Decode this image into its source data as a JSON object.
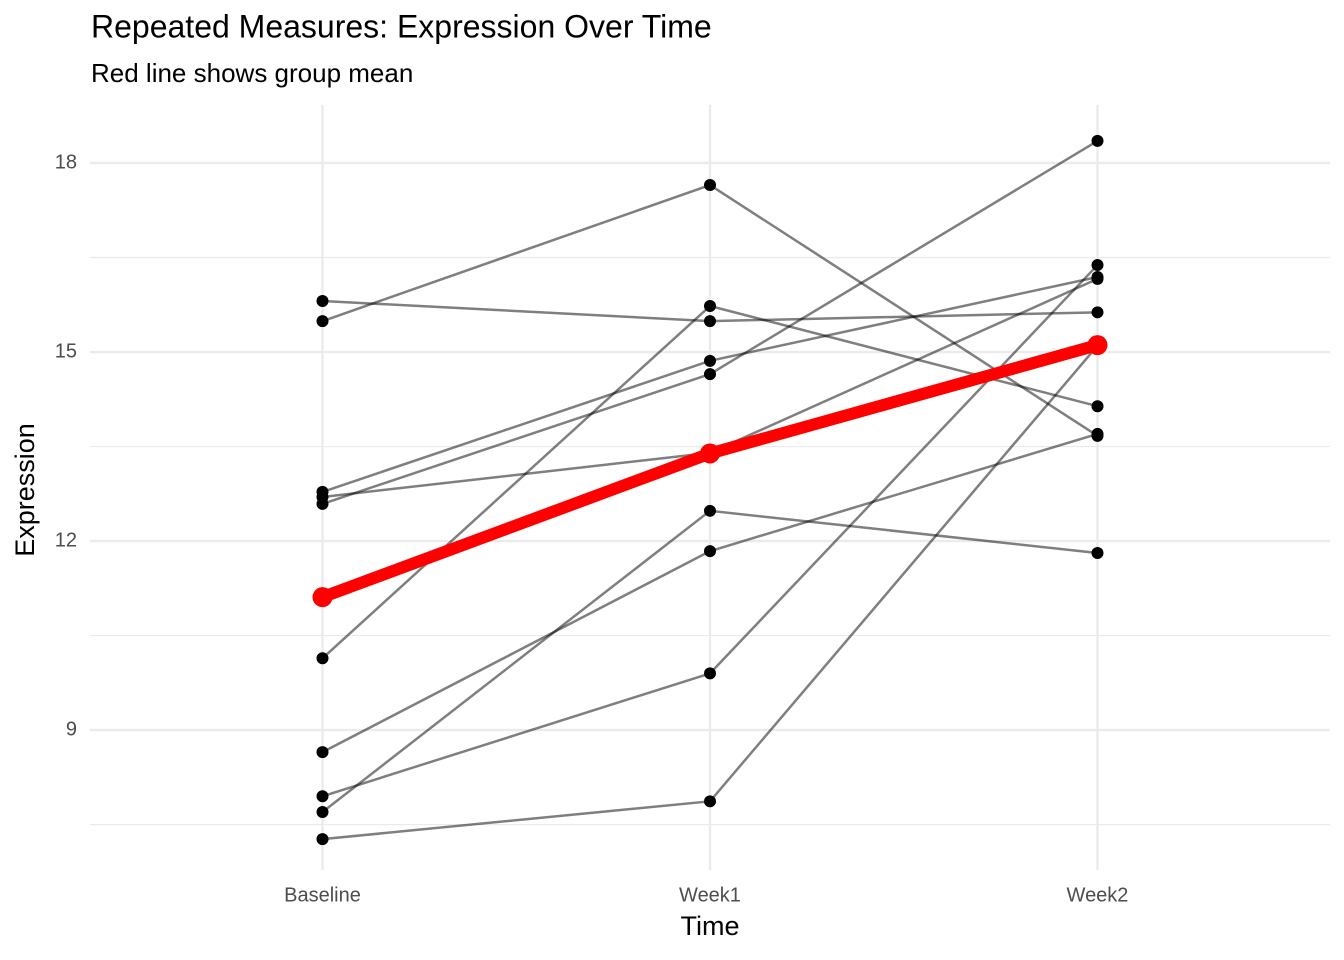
{
  "chart_data": {
    "type": "line",
    "title": "Repeated Measures: Expression Over Time",
    "subtitle": "Red line shows group mean",
    "x_label": "Time",
    "y_label": "Expression",
    "categories": [
      "Baseline",
      "Week1",
      "Week2"
    ],
    "series": [
      {
        "color": "#000000",
        "values": [
          15.81,
          15.49,
          15.63
        ]
      },
      {
        "color": "#000000",
        "values": [
          15.49,
          17.65,
          13.67
        ]
      },
      {
        "color": "#000000",
        "values": [
          12.78,
          14.86,
          16.19
        ]
      },
      {
        "color": "#000000",
        "values": [
          12.7,
          13.4,
          16.16
        ]
      },
      {
        "color": "#000000",
        "values": [
          12.59,
          14.65,
          18.35
        ]
      },
      {
        "color": "#000000",
        "values": [
          10.14,
          15.73,
          14.14
        ]
      },
      {
        "color": "#000000",
        "values": [
          8.65,
          11.84,
          13.7
        ]
      },
      {
        "color": "#000000",
        "values": [
          7.95,
          9.9,
          16.38
        ]
      },
      {
        "color": "#000000",
        "values": [
          7.7,
          12.48,
          11.81
        ]
      },
      {
        "color": "#000000",
        "values": [
          7.27,
          7.87,
          15.1
        ]
      }
    ],
    "mean": {
      "color": "#ff0000",
      "values": [
        11.11,
        13.39,
        15.11
      ]
    },
    "ylim": [
      6.78,
      18.92
    ],
    "yticks": [
      9,
      12,
      15,
      18
    ],
    "minor_yticks": [
      7.5,
      10.5,
      13.5,
      16.5
    ],
    "grid": true
  }
}
